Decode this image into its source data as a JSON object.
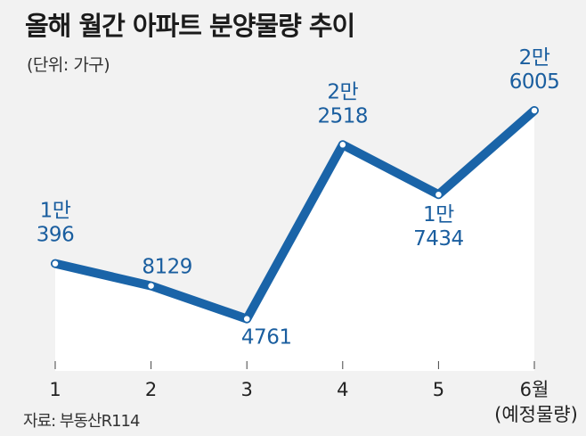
{
  "title": "올해 월간 아파트 분양물량 추이",
  "unit": "(단위: 가구)",
  "source": "자료: 부동산R114",
  "colors": {
    "line": "#1a64a8",
    "label": "#1a5e9f",
    "background": "#f2f2f2",
    "area": "#ffffff"
  },
  "chart_data": {
    "type": "line",
    "title": "올해 월간 아파트 분양물량 추이",
    "ylabel": "가구",
    "categories": [
      "1",
      "2",
      "3",
      "4",
      "5",
      "6월"
    ],
    "category_notes": [
      "",
      "",
      "",
      "",
      "",
      "(예정물량)"
    ],
    "values": [
      10396,
      8129,
      4761,
      22518,
      17434,
      26005
    ],
    "data_labels": [
      [
        "1만",
        "396"
      ],
      [
        "8129"
      ],
      [
        "4761"
      ],
      [
        "2만",
        "2518"
      ],
      [
        "1만",
        "7434"
      ],
      [
        "2만",
        "6005"
      ]
    ],
    "ylim": [
      0,
      30000
    ],
    "grid": false
  }
}
